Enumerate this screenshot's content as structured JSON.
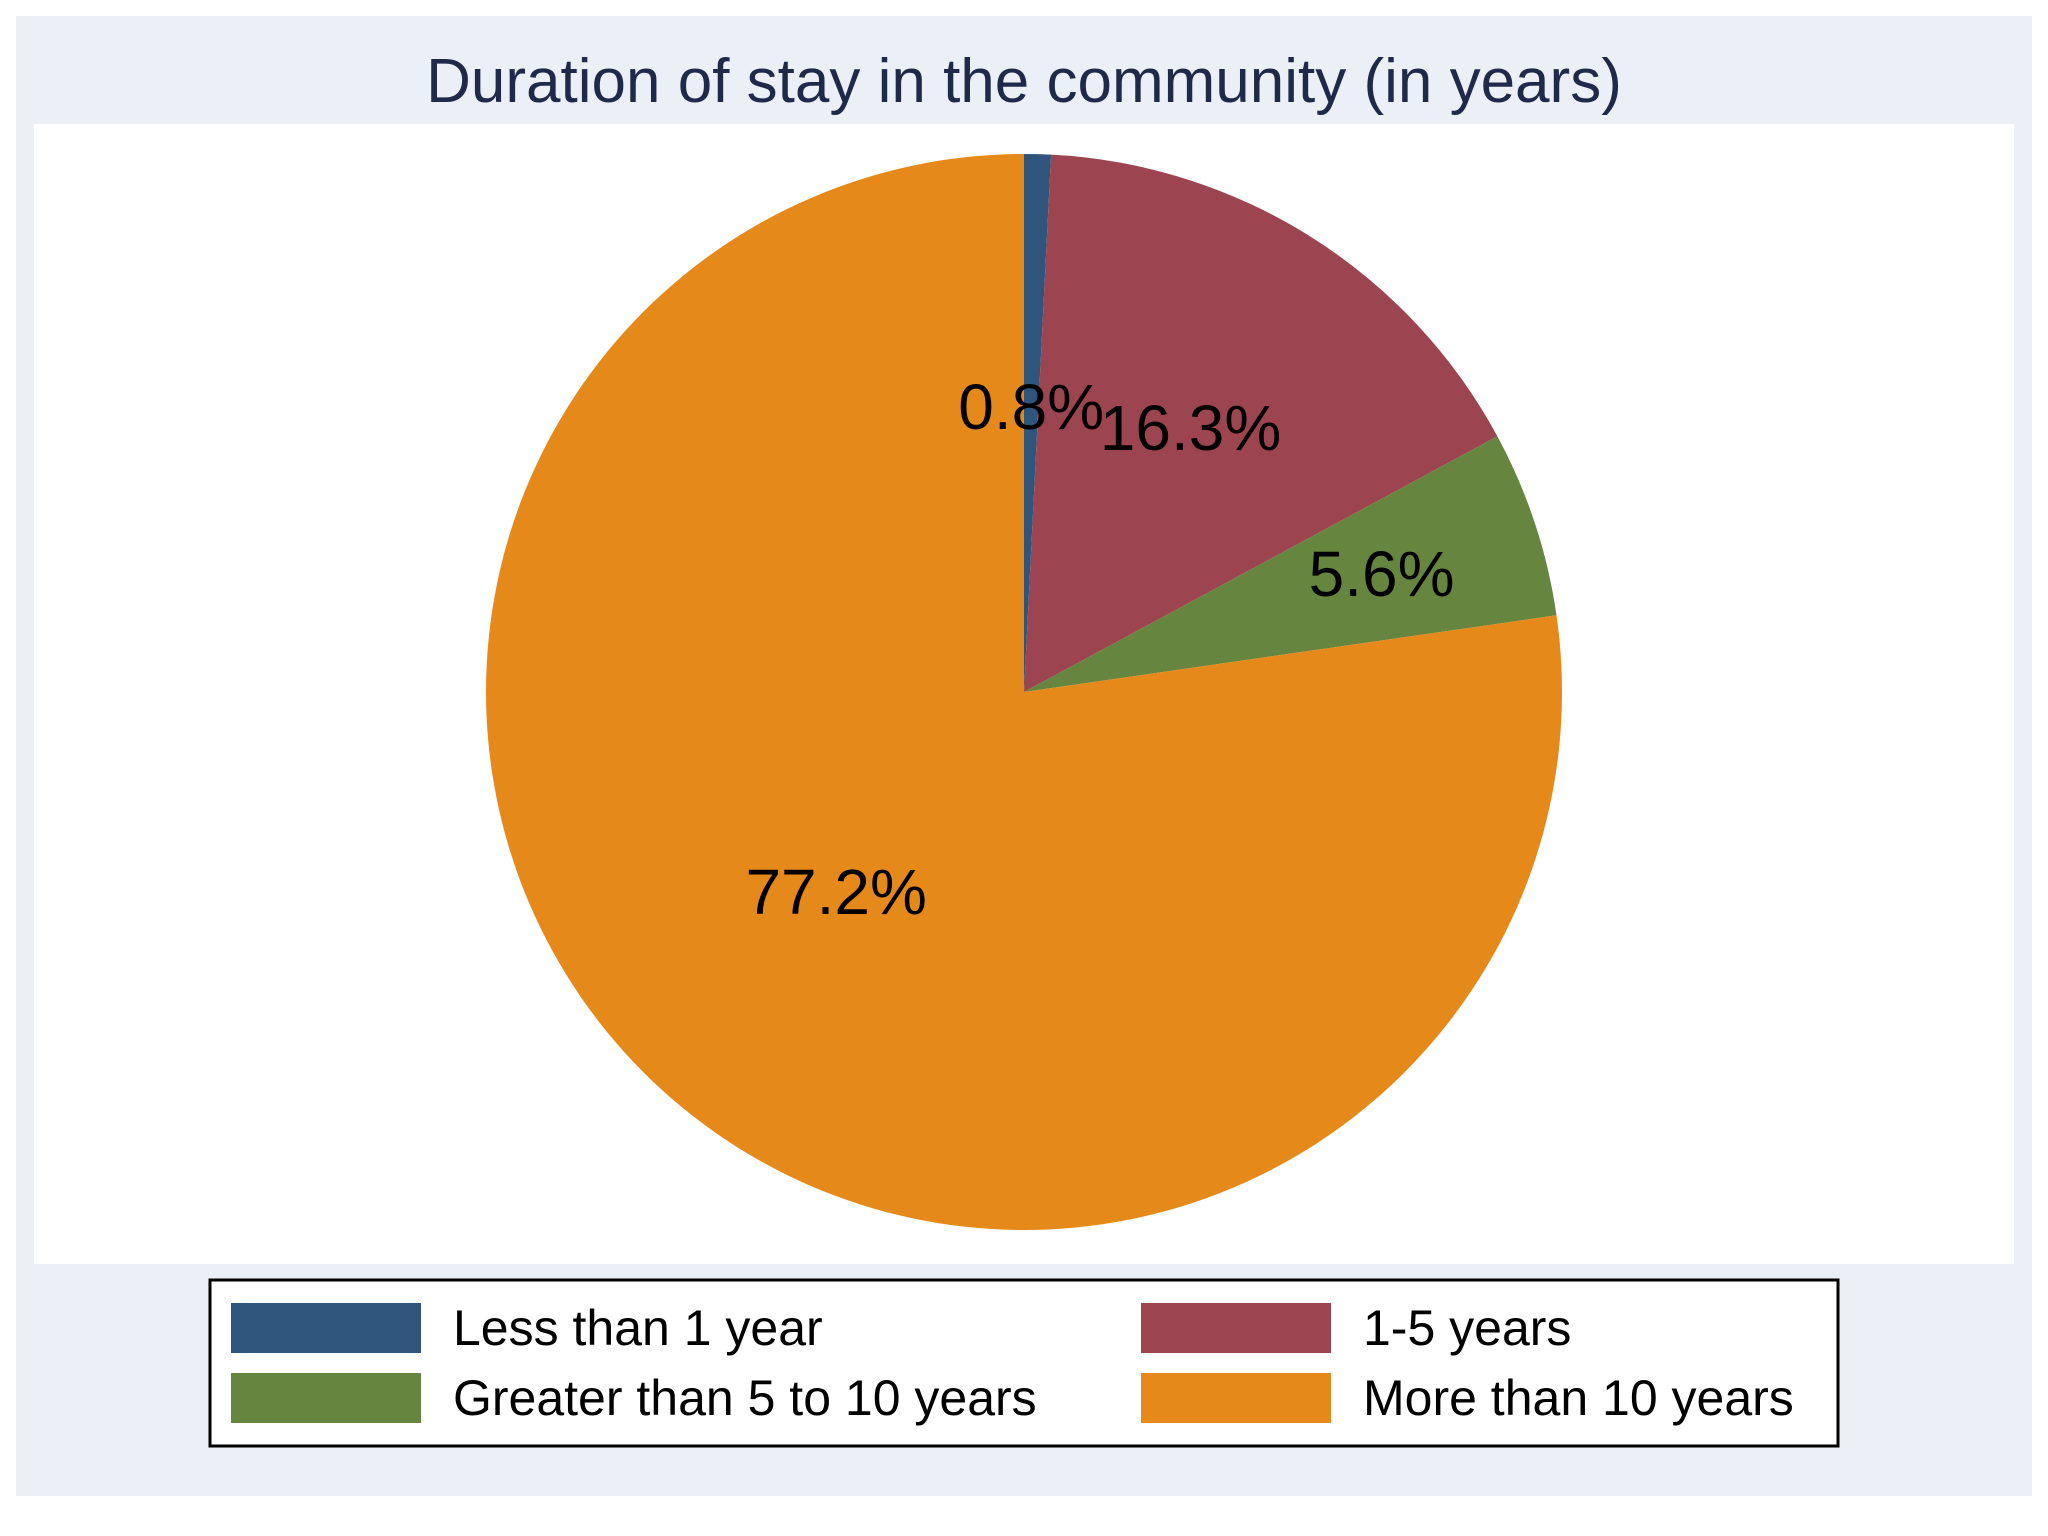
{
  "chart_data": {
    "type": "pie",
    "title": "Duration of stay in the community (in years)",
    "categories": [
      "Less than 1 year",
      "1-5 years",
      "Greater than 5 to 10 years",
      "More than 10 years"
    ],
    "values": [
      0.8,
      16.3,
      5.6,
      77.2
    ],
    "labels": [
      "0.8%",
      "16.3%",
      "5.6%",
      "77.2%"
    ],
    "colors": [
      "#2f557d",
      "#9c4550",
      "#66853f",
      "#e5891a"
    ],
    "start_angle": "12 o'clock",
    "direction": "clockwise",
    "legend_position": "bottom",
    "legend_columns": 2
  },
  "colors": {
    "outer_background": "#eaf0f6",
    "plot_background": "#ffffff",
    "title": "#1f2a4a",
    "legend_border": "#000000"
  }
}
